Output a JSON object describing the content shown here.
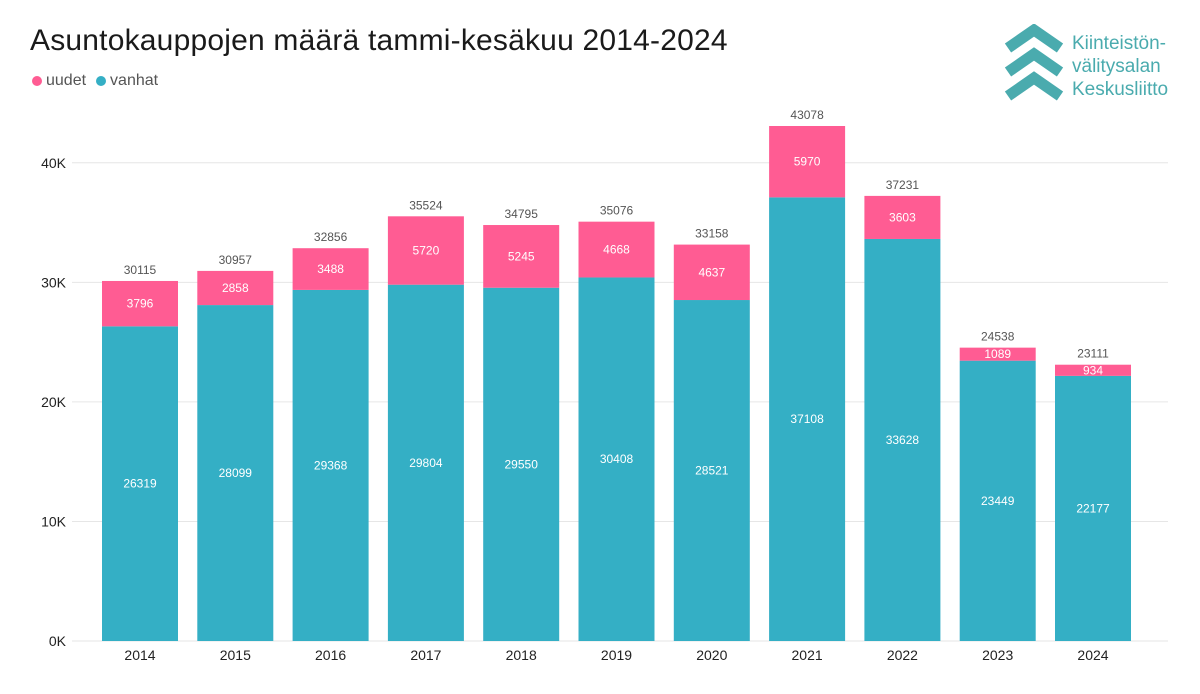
{
  "colors": {
    "uudet": "#ff5c93",
    "vanhat": "#34afc5",
    "grid": "#e6e6e6",
    "logo": "#4aabae"
  },
  "logo": {
    "line1": "Kiinteistön-",
    "line2": "välitysalan",
    "line3": "Keskusliitto"
  },
  "chart_data": {
    "type": "bar",
    "stacked": true,
    "title": "Asuntokauppojen määrä tammi-kesäkuu 2014-2024",
    "legend": [
      "uudet",
      "vanhat"
    ],
    "legend_position": "top-left",
    "categories": [
      "2014",
      "2015",
      "2016",
      "2017",
      "2018",
      "2019",
      "2020",
      "2021",
      "2022",
      "2023",
      "2024"
    ],
    "series": [
      {
        "name": "vanhat",
        "values": [
          26319,
          28099,
          29368,
          29804,
          29550,
          30408,
          28521,
          37108,
          33628,
          23449,
          22177
        ]
      },
      {
        "name": "uudet",
        "values": [
          3796,
          2858,
          3488,
          5720,
          5245,
          4668,
          4637,
          5970,
          3603,
          1089,
          934
        ]
      }
    ],
    "totals": [
      30115,
      30957,
      32856,
      35524,
      34795,
      35076,
      33158,
      43078,
      37231,
      24538,
      23111
    ],
    "yticks": [
      0,
      10000,
      20000,
      30000,
      40000
    ],
    "ytick_labels": [
      "0K",
      "10K",
      "20K",
      "30K",
      "40K"
    ],
    "ylim": [
      0,
      43078
    ],
    "grid": true
  }
}
